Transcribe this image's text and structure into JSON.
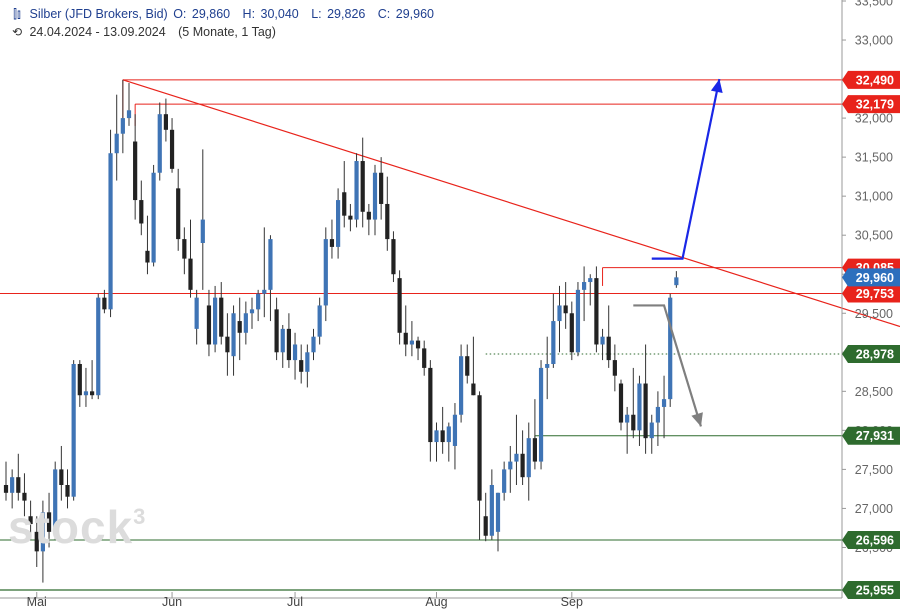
{
  "header": {
    "instrument": "Silber (JFD Brokers, Bid)",
    "o_label": "O:",
    "o_value": "29,860",
    "h_label": "H:",
    "h_value": "30,040",
    "l_label": "L:",
    "l_value": "29,826",
    "c_label": "C:",
    "c_value": "29,960",
    "range": "24.04.2024 - 13.09.2024",
    "range_detail": "(5 Monate, 1 Tag)",
    "instrument_icon": "candlestick-icon",
    "history_icon": "clock-history-icon"
  },
  "watermark": {
    "text": "stock",
    "sup": "3"
  },
  "chart_data": {
    "type": "candlestick",
    "y_scale": {
      "min": 25.955,
      "max": 33.5
    },
    "y_ticks": [
      {
        "value": 33.5,
        "label": "33,500"
      },
      {
        "value": 33.0,
        "label": "33,000"
      },
      {
        "value": 32.5,
        "label": "32,500"
      },
      {
        "value": 32.0,
        "label": "32,000"
      },
      {
        "value": 31.5,
        "label": "31,500"
      },
      {
        "value": 31.0,
        "label": "31,000"
      },
      {
        "value": 30.5,
        "label": "30,500"
      },
      {
        "value": 30.0,
        "label": "30,000"
      },
      {
        "value": 29.5,
        "label": "29,500"
      },
      {
        "value": 29.0,
        "label": "29,000"
      },
      {
        "value": 28.5,
        "label": "28,500"
      },
      {
        "value": 28.0,
        "label": "28,000"
      },
      {
        "value": 27.5,
        "label": "27,500"
      },
      {
        "value": 27.0,
        "label": "27,000"
      },
      {
        "value": 26.5,
        "label": "26,500"
      }
    ],
    "x_ticks": [
      {
        "index": 5,
        "label": "Mai"
      },
      {
        "index": 27,
        "label": "Jun"
      },
      {
        "index": 47,
        "label": "Jul"
      },
      {
        "index": 70,
        "label": "Aug"
      },
      {
        "index": 92,
        "label": "Sep"
      }
    ],
    "candles": [
      {
        "o": 27.3,
        "h": 27.6,
        "l": 27.1,
        "c": 27.2
      },
      {
        "o": 27.2,
        "h": 27.5,
        "l": 27.0,
        "c": 27.4
      },
      {
        "o": 27.4,
        "h": 27.7,
        "l": 27.1,
        "c": 27.2
      },
      {
        "o": 27.2,
        "h": 27.45,
        "l": 26.9,
        "c": 27.1
      },
      {
        "o": 26.9,
        "h": 27.1,
        "l": 26.6,
        "c": 26.8
      },
      {
        "o": 26.7,
        "h": 26.9,
        "l": 26.25,
        "c": 26.45
      },
      {
        "o": 26.45,
        "h": 27.1,
        "l": 26.05,
        "c": 26.95
      },
      {
        "o": 26.95,
        "h": 27.2,
        "l": 26.5,
        "c": 26.7
      },
      {
        "o": 26.7,
        "h": 27.6,
        "l": 26.6,
        "c": 27.5
      },
      {
        "o": 27.5,
        "h": 27.8,
        "l": 27.1,
        "c": 27.3
      },
      {
        "o": 27.3,
        "h": 27.5,
        "l": 27.0,
        "c": 27.15
      },
      {
        "o": 27.15,
        "h": 28.9,
        "l": 27.1,
        "c": 28.85
      },
      {
        "o": 28.85,
        "h": 28.9,
        "l": 28.3,
        "c": 28.45
      },
      {
        "o": 28.45,
        "h": 28.8,
        "l": 28.3,
        "c": 28.5
      },
      {
        "o": 28.5,
        "h": 28.9,
        "l": 28.4,
        "c": 28.45
      },
      {
        "o": 28.45,
        "h": 29.75,
        "l": 28.4,
        "c": 29.7
      },
      {
        "o": 29.7,
        "h": 29.8,
        "l": 29.5,
        "c": 29.55
      },
      {
        "o": 29.55,
        "h": 31.85,
        "l": 29.45,
        "c": 31.55
      },
      {
        "o": 31.55,
        "h": 32.3,
        "l": 31.2,
        "c": 31.8
      },
      {
        "o": 31.8,
        "h": 32.49,
        "l": 31.55,
        "c": 32.0
      },
      {
        "o": 32.0,
        "h": 32.45,
        "l": 31.9,
        "c": 32.1
      },
      {
        "o": 31.7,
        "h": 32.05,
        "l": 30.7,
        "c": 30.95
      },
      {
        "o": 30.95,
        "h": 31.2,
        "l": 30.5,
        "c": 30.65
      },
      {
        "o": 30.3,
        "h": 30.75,
        "l": 30.0,
        "c": 30.15
      },
      {
        "o": 30.15,
        "h": 31.4,
        "l": 30.1,
        "c": 31.3
      },
      {
        "o": 31.3,
        "h": 32.2,
        "l": 31.2,
        "c": 32.05
      },
      {
        "o": 32.05,
        "h": 32.25,
        "l": 31.7,
        "c": 31.85
      },
      {
        "o": 31.85,
        "h": 32.0,
        "l": 31.3,
        "c": 31.35
      },
      {
        "o": 31.1,
        "h": 31.35,
        "l": 30.3,
        "c": 30.45
      },
      {
        "o": 30.45,
        "h": 30.6,
        "l": 30.0,
        "c": 30.2
      },
      {
        "o": 30.2,
        "h": 30.7,
        "l": 29.7,
        "c": 29.8
      },
      {
        "o": 29.3,
        "h": 29.8,
        "l": 29.1,
        "c": 29.7
      },
      {
        "o": 30.4,
        "h": 31.6,
        "l": 29.8,
        "c": 30.7
      },
      {
        "o": 29.6,
        "h": 29.8,
        "l": 28.95,
        "c": 29.1
      },
      {
        "o": 29.1,
        "h": 29.85,
        "l": 29.0,
        "c": 29.7
      },
      {
        "o": 29.7,
        "h": 29.9,
        "l": 29.1,
        "c": 29.2
      },
      {
        "o": 29.2,
        "h": 29.5,
        "l": 28.7,
        "c": 29.0
      },
      {
        "o": 28.95,
        "h": 29.6,
        "l": 28.7,
        "c": 29.5
      },
      {
        "o": 29.4,
        "h": 29.7,
        "l": 28.9,
        "c": 29.25
      },
      {
        "o": 29.25,
        "h": 29.65,
        "l": 29.1,
        "c": 29.5
      },
      {
        "o": 29.5,
        "h": 29.7,
        "l": 29.3,
        "c": 29.55
      },
      {
        "o": 29.55,
        "h": 29.8,
        "l": 29.4,
        "c": 29.75
      },
      {
        "o": 29.75,
        "h": 30.6,
        "l": 29.45,
        "c": 29.8
      },
      {
        "o": 29.8,
        "h": 30.5,
        "l": 29.4,
        "c": 30.45
      },
      {
        "o": 29.55,
        "h": 29.7,
        "l": 28.9,
        "c": 29.0
      },
      {
        "o": 29.0,
        "h": 29.35,
        "l": 28.8,
        "c": 29.3
      },
      {
        "o": 29.3,
        "h": 29.5,
        "l": 28.8,
        "c": 28.9
      },
      {
        "o": 28.9,
        "h": 29.25,
        "l": 28.65,
        "c": 29.1
      },
      {
        "o": 28.9,
        "h": 29.1,
        "l": 28.6,
        "c": 28.75
      },
      {
        "o": 28.75,
        "h": 29.1,
        "l": 28.55,
        "c": 29.0
      },
      {
        "o": 29.0,
        "h": 29.3,
        "l": 28.9,
        "c": 29.2
      },
      {
        "o": 29.2,
        "h": 29.7,
        "l": 29.1,
        "c": 29.6
      },
      {
        "o": 29.6,
        "h": 30.6,
        "l": 29.4,
        "c": 30.45
      },
      {
        "o": 30.45,
        "h": 30.7,
        "l": 30.2,
        "c": 30.35
      },
      {
        "o": 30.35,
        "h": 31.1,
        "l": 30.2,
        "c": 30.95
      },
      {
        "o": 31.05,
        "h": 31.45,
        "l": 30.6,
        "c": 30.75
      },
      {
        "o": 30.75,
        "h": 30.9,
        "l": 30.55,
        "c": 30.7
      },
      {
        "o": 30.7,
        "h": 31.55,
        "l": 30.6,
        "c": 31.45
      },
      {
        "o": 31.45,
        "h": 31.75,
        "l": 30.6,
        "c": 30.8
      },
      {
        "o": 30.8,
        "h": 30.9,
        "l": 30.5,
        "c": 30.7
      },
      {
        "o": 30.7,
        "h": 31.4,
        "l": 30.5,
        "c": 31.3
      },
      {
        "o": 31.3,
        "h": 31.5,
        "l": 30.7,
        "c": 30.9
      },
      {
        "o": 30.9,
        "h": 31.25,
        "l": 30.3,
        "c": 30.45
      },
      {
        "o": 30.45,
        "h": 30.55,
        "l": 29.9,
        "c": 30.0
      },
      {
        "o": 29.95,
        "h": 30.05,
        "l": 29.1,
        "c": 29.25
      },
      {
        "o": 29.25,
        "h": 29.6,
        "l": 28.95,
        "c": 29.1
      },
      {
        "o": 29.1,
        "h": 29.4,
        "l": 28.95,
        "c": 29.15
      },
      {
        "o": 29.15,
        "h": 29.2,
        "l": 28.9,
        "c": 29.05
      },
      {
        "o": 29.05,
        "h": 29.15,
        "l": 28.7,
        "c": 28.8
      },
      {
        "o": 28.8,
        "h": 28.9,
        "l": 27.6,
        "c": 27.85
      },
      {
        "o": 27.85,
        "h": 28.1,
        "l": 27.6,
        "c": 28.0
      },
      {
        "o": 28.0,
        "h": 28.3,
        "l": 27.7,
        "c": 27.85
      },
      {
        "o": 27.85,
        "h": 28.1,
        "l": 27.6,
        "c": 28.05
      },
      {
        "o": 27.8,
        "h": 28.35,
        "l": 27.5,
        "c": 28.2
      },
      {
        "o": 28.2,
        "h": 29.1,
        "l": 28.1,
        "c": 28.95
      },
      {
        "o": 28.95,
        "h": 29.1,
        "l": 28.6,
        "c": 28.7
      },
      {
        "o": 28.6,
        "h": 29.2,
        "l": 28.45,
        "c": 28.45
      },
      {
        "o": 28.45,
        "h": 28.5,
        "l": 26.6,
        "c": 27.1
      },
      {
        "o": 26.9,
        "h": 27.2,
        "l": 26.58,
        "c": 26.65
      },
      {
        "o": 26.65,
        "h": 27.5,
        "l": 26.6,
        "c": 27.3
      },
      {
        "o": 26.7,
        "h": 27.2,
        "l": 26.45,
        "c": 27.2
      },
      {
        "o": 27.2,
        "h": 27.6,
        "l": 27.1,
        "c": 27.5
      },
      {
        "o": 27.5,
        "h": 27.8,
        "l": 27.2,
        "c": 27.6
      },
      {
        "o": 27.6,
        "h": 28.2,
        "l": 27.3,
        "c": 27.7
      },
      {
        "o": 27.7,
        "h": 28.0,
        "l": 27.3,
        "c": 27.4
      },
      {
        "o": 27.4,
        "h": 28.1,
        "l": 27.1,
        "c": 27.9
      },
      {
        "o": 27.9,
        "h": 28.4,
        "l": 27.5,
        "c": 27.6
      },
      {
        "o": 27.6,
        "h": 28.9,
        "l": 27.5,
        "c": 28.8
      },
      {
        "o": 28.8,
        "h": 29.2,
        "l": 28.4,
        "c": 28.85
      },
      {
        "o": 28.85,
        "h": 29.75,
        "l": 28.8,
        "c": 29.4
      },
      {
        "o": 29.4,
        "h": 29.85,
        "l": 29.0,
        "c": 29.6
      },
      {
        "o": 29.6,
        "h": 29.9,
        "l": 29.3,
        "c": 29.5
      },
      {
        "o": 29.5,
        "h": 29.65,
        "l": 28.9,
        "c": 29.0
      },
      {
        "o": 29.0,
        "h": 29.9,
        "l": 28.95,
        "c": 29.8
      },
      {
        "o": 29.8,
        "h": 30.1,
        "l": 29.4,
        "c": 29.9
      },
      {
        "o": 29.9,
        "h": 30.0,
        "l": 29.6,
        "c": 29.95
      },
      {
        "o": 29.95,
        "h": 30.1,
        "l": 29.0,
        "c": 29.1
      },
      {
        "o": 29.1,
        "h": 29.3,
        "l": 28.9,
        "c": 29.2
      },
      {
        "o": 29.2,
        "h": 29.6,
        "l": 28.8,
        "c": 28.9
      },
      {
        "o": 28.9,
        "h": 29.1,
        "l": 28.5,
        "c": 28.7
      },
      {
        "o": 28.6,
        "h": 28.65,
        "l": 28.0,
        "c": 28.1
      },
      {
        "o": 28.1,
        "h": 28.3,
        "l": 27.7,
        "c": 28.2
      },
      {
        "o": 28.2,
        "h": 28.8,
        "l": 27.9,
        "c": 28.0
      },
      {
        "o": 28.0,
        "h": 28.7,
        "l": 27.8,
        "c": 28.6
      },
      {
        "o": 28.6,
        "h": 29.1,
        "l": 27.7,
        "c": 27.9
      },
      {
        "o": 27.9,
        "h": 28.2,
        "l": 27.7,
        "c": 28.1
      },
      {
        "o": 28.1,
        "h": 28.5,
        "l": 27.8,
        "c": 28.3
      },
      {
        "o": 28.3,
        "h": 28.7,
        "l": 27.9,
        "c": 28.4
      },
      {
        "o": 28.4,
        "h": 29.75,
        "l": 28.3,
        "c": 29.7
      },
      {
        "o": 29.86,
        "h": 30.04,
        "l": 29.826,
        "c": 29.96
      }
    ],
    "support_resistance": [
      {
        "value": 32.49,
        "label": "32,490",
        "color": "#e8231b",
        "kind": "resistance"
      },
      {
        "value": 32.179,
        "label": "32,179",
        "color": "#e8231b",
        "kind": "resistance"
      },
      {
        "value": 30.085,
        "label": "30,085",
        "color": "#e8231b",
        "kind": "resistance"
      },
      {
        "value": 29.753,
        "label": "29,753",
        "color": "#e8231b",
        "kind": "resistance"
      },
      {
        "value": 28.978,
        "label": "28,978",
        "color": "#2e6b2e",
        "kind": "support"
      },
      {
        "value": 27.931,
        "label": "27,931",
        "color": "#2e6b2e",
        "kind": "support"
      },
      {
        "value": 26.596,
        "label": "26,596",
        "color": "#2e6b2e",
        "kind": "support"
      },
      {
        "value": 25.955,
        "label": "25,955",
        "color": "#2e6b2e",
        "kind": "support"
      }
    ],
    "current_price": {
      "value": 29.96,
      "label": "29,960",
      "color": "#2c6fbd"
    },
    "trendline": {
      "from": {
        "index": 19,
        "value": 32.49
      },
      "to": {
        "index": 127,
        "value": 29.33
      },
      "color": "#e8231b"
    },
    "scenario_arrows": [
      {
        "name": "bullish",
        "color": "#1a27e6",
        "points": [
          {
            "index": 105,
            "value": 30.2
          },
          {
            "index": 110,
            "value": 30.2
          },
          {
            "index": 116,
            "value": 32.5
          }
        ]
      },
      {
        "name": "bearish",
        "color": "#7f7f7f",
        "points": [
          {
            "index": 102,
            "value": 29.6
          },
          {
            "index": 107,
            "value": 29.6
          },
          {
            "index": 113,
            "value": 28.05
          }
        ]
      }
    ],
    "colors": {
      "candle": "#3f74b5",
      "wick": "#333333",
      "grid": "none"
    }
  }
}
